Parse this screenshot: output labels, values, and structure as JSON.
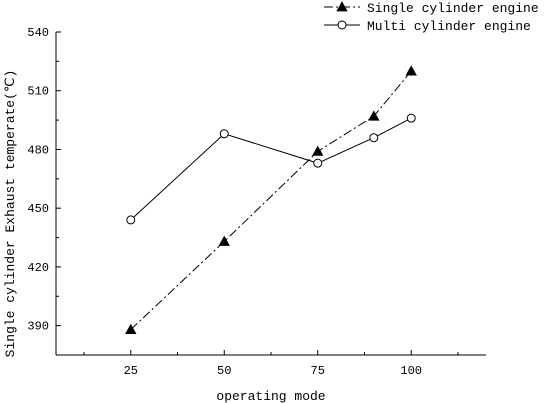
{
  "chart_data": {
    "type": "line",
    "title": "",
    "xlabel": "operating mode",
    "ylabel": "Single cylinder Exhaust temperate(℃)",
    "xlim": [
      5,
      120
    ],
    "ylim": [
      375,
      540
    ],
    "xticks": [
      25,
      50,
      75,
      100
    ],
    "yticks": [
      390,
      420,
      450,
      480,
      510,
      540
    ],
    "grid": false,
    "legend_position": "top-right",
    "series": [
      {
        "name": "Single cylinder engine",
        "marker": "filled-triangle",
        "line_style": "dash-dot",
        "color": "#000000",
        "points": [
          [
            25,
            388
          ],
          [
            50,
            433
          ],
          [
            75,
            479
          ],
          [
            90,
            497
          ],
          [
            100,
            520
          ]
        ]
      },
      {
        "name": "Multi cylinder engine",
        "marker": "open-circle",
        "line_style": "solid",
        "color": "#000000",
        "points": [
          [
            25,
            444
          ],
          [
            50,
            488
          ],
          [
            75,
            473
          ],
          [
            90,
            486
          ],
          [
            100,
            496
          ]
        ]
      }
    ]
  }
}
